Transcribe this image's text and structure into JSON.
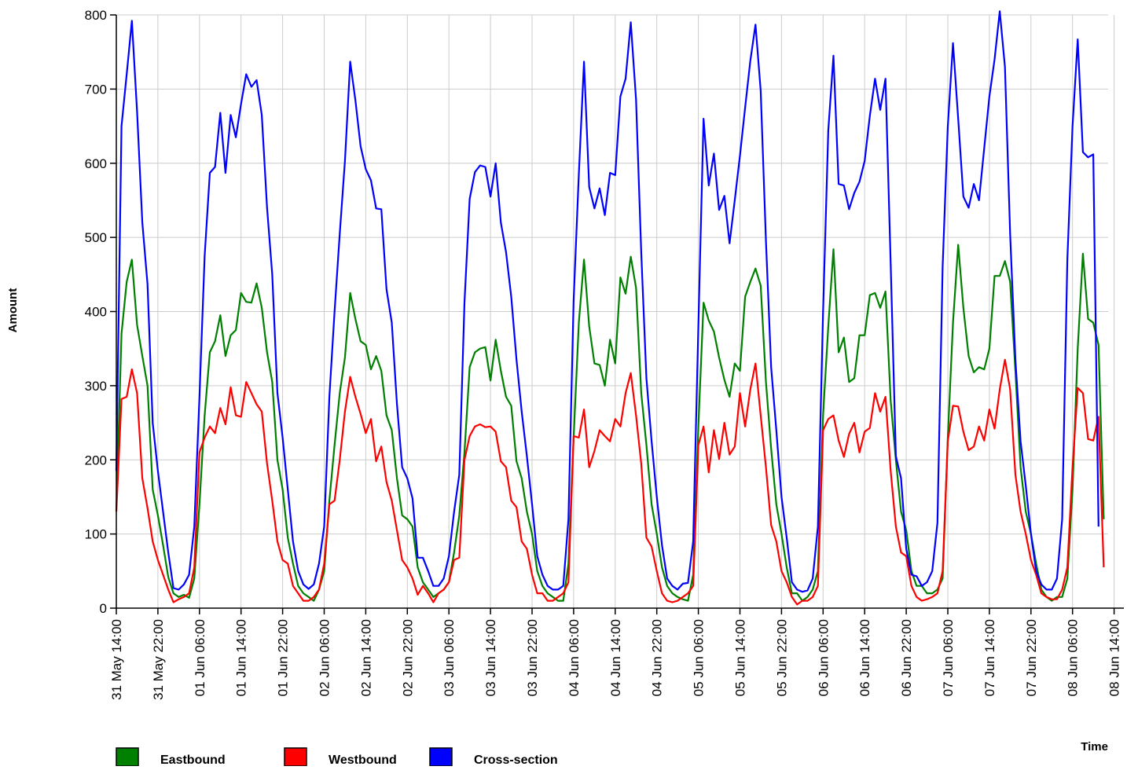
{
  "chart_data": {
    "type": "line",
    "xlabel": "Time",
    "ylabel": "Amount",
    "ylim": [
      0,
      800
    ],
    "y_ticks": [
      0,
      100,
      200,
      300,
      400,
      500,
      600,
      700,
      800
    ],
    "grid": true,
    "legend_position": "bottom-left",
    "x_start": "2024-05-31T14:00",
    "x_step_hours": 1,
    "x_tick_labels": [
      "31 May 14:00",
      "31 May 22:00",
      "01 Jun 06:00",
      "01 Jun 14:00",
      "01 Jun 22:00",
      "02 Jun 06:00",
      "02 Jun 14:00",
      "02 Jun 22:00",
      "03 Jun 06:00",
      "03 Jun 14:00",
      "03 Jun 22:00",
      "04 Jun 06:00",
      "04 Jun 14:00",
      "04 Jun 22:00",
      "05 Jun 06:00",
      "05 Jun 14:00",
      "05 Jun 22:00",
      "06 Jun 06:00",
      "06 Jun 14:00",
      "06 Jun 22:00",
      "07 Jun 06:00",
      "07 Jun 14:00",
      "07 Jun 22:00",
      "08 Jun 06:00",
      "08 Jun 14:00"
    ],
    "series": [
      {
        "name": "Eastbound",
        "color": "#008000",
        "values": [
          132,
          370,
          440,
          470,
          382,
          340,
          300,
          160,
          125,
          85,
          42,
          20,
          15,
          18,
          14,
          40,
          140,
          260,
          345,
          360,
          395,
          340,
          368,
          375,
          425,
          413,
          412,
          438,
          405,
          345,
          305,
          200,
          160,
          95,
          60,
          30,
          20,
          15,
          10,
          25,
          50,
          145,
          220,
          290,
          338,
          425,
          390,
          360,
          355,
          322,
          340,
          320,
          260,
          240,
          175,
          125,
          120,
          110,
          55,
          35,
          25,
          15,
          20,
          25,
          35,
          75,
          125,
          210,
          325,
          345,
          350,
          352,
          307,
          362,
          320,
          285,
          273,
          198,
          175,
          130,
          100,
          50,
          30,
          20,
          15,
          10,
          10,
          60,
          230,
          385,
          470,
          380,
          330,
          328,
          300,
          362,
          330,
          446,
          424,
          474,
          432,
          290,
          220,
          140,
          100,
          55,
          30,
          20,
          15,
          12,
          10,
          45,
          245,
          412,
          388,
          373,
          338,
          308,
          285,
          330,
          320,
          420,
          440,
          458,
          435,
          305,
          215,
          140,
          100,
          55,
          20,
          20,
          10,
          15,
          25,
          50,
          260,
          380,
          484,
          345,
          365,
          305,
          310,
          368,
          368,
          422,
          425,
          405,
          427,
          280,
          200,
          130,
          105,
          50,
          30,
          30,
          20,
          20,
          25,
          40,
          230,
          385,
          490,
          405,
          340,
          318,
          325,
          322,
          350,
          448,
          448,
          468,
          440,
          320,
          190,
          130,
          100,
          60,
          25,
          15,
          10,
          15,
          15,
          40,
          160,
          350,
          478,
          390,
          385,
          355,
          120
        ]
      },
      {
        "name": "Westbound",
        "color": "#FF0000",
        "values": [
          130,
          282,
          285,
          322,
          290,
          175,
          135,
          90,
          65,
          45,
          25,
          8,
          12,
          15,
          20,
          55,
          210,
          230,
          245,
          236,
          270,
          248,
          298,
          260,
          258,
          305,
          290,
          275,
          265,
          195,
          145,
          90,
          65,
          60,
          30,
          20,
          10,
          10,
          15,
          25,
          60,
          140,
          145,
          200,
          265,
          312,
          285,
          262,
          236,
          255,
          198,
          218,
          170,
          145,
          105,
          65,
          55,
          40,
          18,
          30,
          20,
          8,
          20,
          25,
          35,
          65,
          68,
          200,
          232,
          245,
          248,
          244,
          245,
          238,
          198,
          190,
          145,
          136,
          90,
          80,
          45,
          20,
          20,
          10,
          10,
          15,
          20,
          35,
          232,
          230,
          268,
          190,
          212,
          240,
          232,
          225,
          255,
          245,
          290,
          317,
          260,
          195,
          95,
          83,
          50,
          20,
          10,
          8,
          10,
          15,
          20,
          30,
          220,
          245,
          183,
          240,
          201,
          250,
          207,
          218,
          290,
          245,
          295,
          330,
          260,
          190,
          112,
          90,
          50,
          35,
          15,
          5,
          10,
          10,
          15,
          30,
          240,
          255,
          260,
          226,
          204,
          235,
          250,
          210,
          238,
          243,
          290,
          265,
          285,
          185,
          110,
          75,
          70,
          30,
          15,
          10,
          12,
          15,
          20,
          50,
          225,
          273,
          272,
          238,
          213,
          218,
          245,
          226,
          268,
          242,
          295,
          335,
          295,
          180,
          130,
          100,
          65,
          45,
          20,
          15,
          12,
          12,
          25,
          55,
          190,
          297,
          290,
          228,
          226,
          258,
          55
        ]
      },
      {
        "name": "Cross-section",
        "color": "#0000FF",
        "values": [
          185,
          650,
          720,
          792,
          670,
          520,
          437,
          250,
          185,
          130,
          75,
          27,
          25,
          32,
          45,
          110,
          285,
          475,
          587,
          595,
          668,
          587,
          665,
          635,
          680,
          720,
          703,
          712,
          665,
          540,
          450,
          290,
          230,
          160,
          90,
          50,
          32,
          26,
          32,
          60,
          110,
          285,
          400,
          505,
          603,
          737,
          685,
          623,
          592,
          577,
          539,
          538,
          430,
          385,
          275,
          190,
          175,
          148,
          68,
          68,
          50,
          30,
          30,
          40,
          70,
          130,
          180,
          412,
          552,
          588,
          597,
          595,
          555,
          600,
          520,
          480,
          420,
          335,
          265,
          205,
          140,
          70,
          45,
          30,
          25,
          25,
          30,
          120,
          415,
          585,
          737,
          568,
          539,
          566,
          530,
          587,
          584,
          690,
          714,
          790,
          686,
          480,
          310,
          225,
          150,
          85,
          40,
          30,
          25,
          33,
          34,
          90,
          380,
          660,
          570,
          613,
          537,
          556,
          492,
          550,
          610,
          675,
          738,
          787,
          698,
          495,
          325,
          240,
          150,
          95,
          35,
          25,
          22,
          24,
          40,
          110,
          400,
          644,
          745,
          572,
          570,
          538,
          560,
          575,
          603,
          664,
          714,
          672,
          714,
          465,
          205,
          175,
          80,
          45,
          43,
          30,
          35,
          50,
          115,
          460,
          650,
          762,
          660,
          555,
          540,
          572,
          550,
          620,
          690,
          740,
          805,
          730,
          505,
          335,
          225,
          165,
          100,
          50,
          32,
          25,
          25,
          40,
          120,
          470,
          650,
          767,
          615,
          608,
          612,
          110
        ]
      }
    ]
  }
}
